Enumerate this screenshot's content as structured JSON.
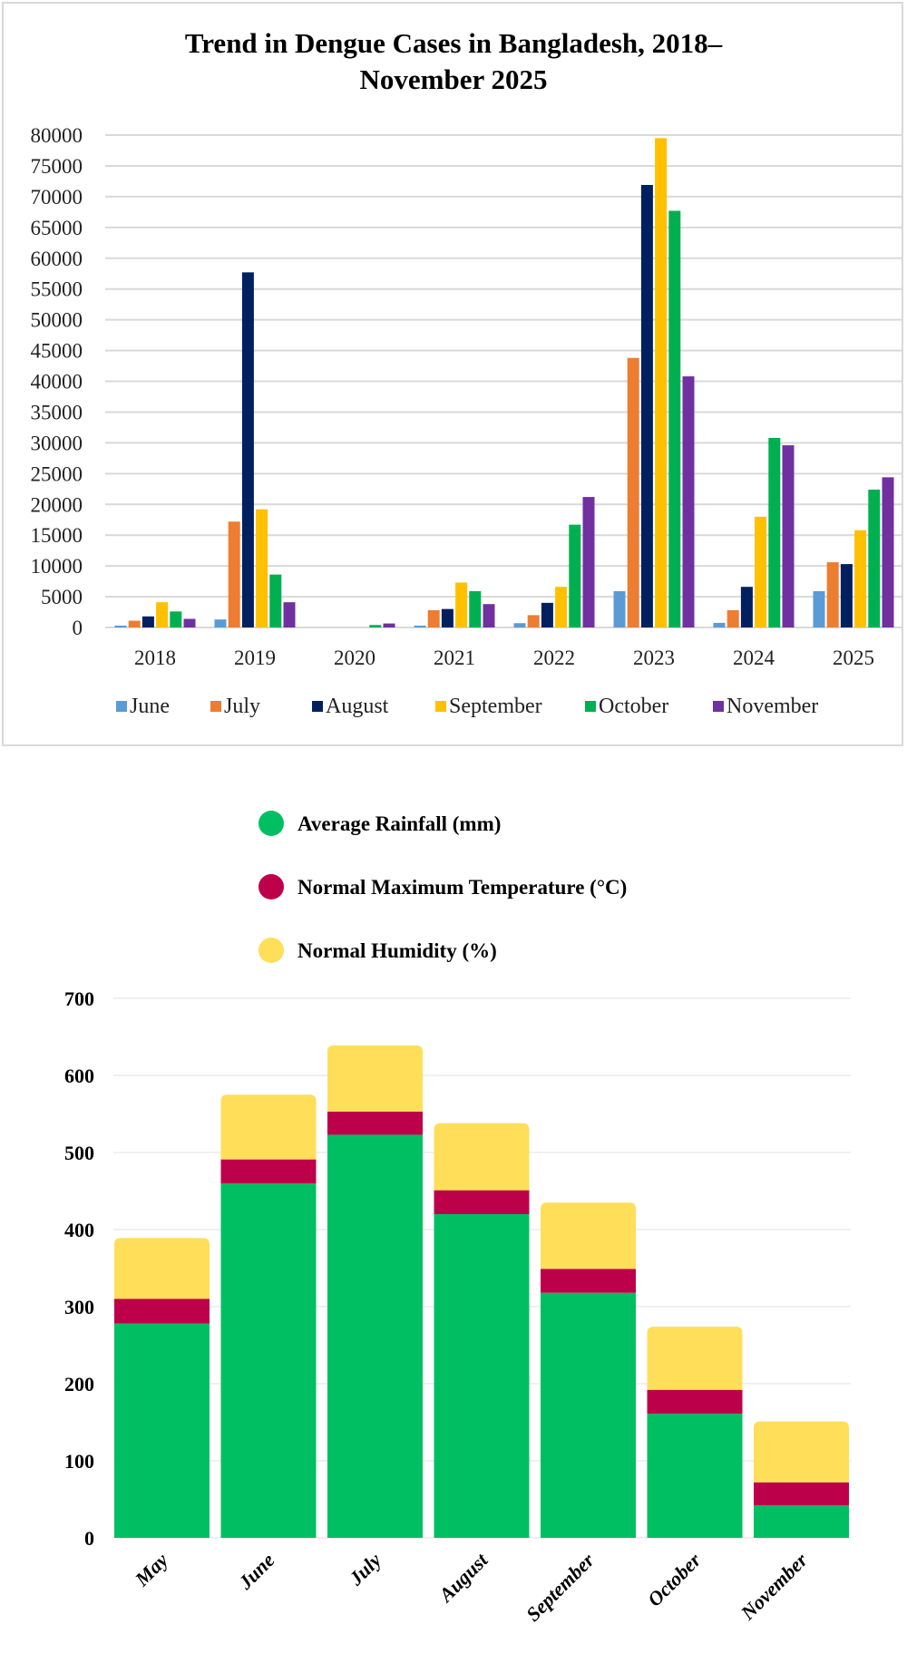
{
  "chart_data": [
    {
      "type": "bar",
      "title": "Trend in Dengue Cases in Bangladesh, 2018–November 2025",
      "title_lines": [
        "Trend in Dengue Cases in Bangladesh, 2018–",
        "November 2025"
      ],
      "xlabel": "",
      "ylabel": "",
      "ylim": [
        0,
        80000
      ],
      "yticks": [
        0,
        5000,
        10000,
        15000,
        20000,
        25000,
        30000,
        35000,
        40000,
        45000,
        50000,
        55000,
        60000,
        65000,
        70000,
        75000,
        80000
      ],
      "grid": true,
      "legend_position": "bottom",
      "categories": [
        "2018",
        "2019",
        "2020",
        "2021",
        "2022",
        "2023",
        "2024",
        "2025"
      ],
      "series": [
        {
          "name": "June",
          "color": "#5b9bd5",
          "values": [
            300,
            1300,
            0,
            300,
            700,
            5900,
            750,
            5900
          ]
        },
        {
          "name": "July",
          "color": "#ed7d31",
          "values": [
            1100,
            17200,
            0,
            2800,
            2000,
            43800,
            2800,
            10600
          ]
        },
        {
          "name": "August",
          "color": "#002060",
          "values": [
            1800,
            57700,
            0,
            3000,
            4000,
            71900,
            6600,
            10300
          ]
        },
        {
          "name": "September",
          "color": "#ffc000",
          "values": [
            4100,
            19200,
            0,
            7300,
            6600,
            79500,
            18000,
            15800
          ]
        },
        {
          "name": "October",
          "color": "#00b050",
          "values": [
            2600,
            8600,
            400,
            5900,
            16700,
            67700,
            30800,
            22400
          ]
        },
        {
          "name": "November",
          "color": "#7030a0",
          "values": [
            1400,
            4100,
            650,
            3800,
            21200,
            40800,
            29600,
            24400
          ]
        }
      ]
    },
    {
      "type": "bar",
      "stacked": true,
      "title": "",
      "xlabel": "",
      "ylabel": "",
      "ylim": [
        0,
        700
      ],
      "yticks": [
        0,
        100,
        200,
        300,
        400,
        500,
        600,
        700
      ],
      "grid": true,
      "legend_position": "top",
      "categories": [
        "May",
        "June",
        "July",
        "August",
        "September",
        "October",
        "November"
      ],
      "series": [
        {
          "name": "Average Rainfall (mm)",
          "color": "#00bf63",
          "values": [
            278,
            460,
            523,
            420,
            318,
            161,
            42
          ]
        },
        {
          "name": "Normal Maximum Temperature (°C)",
          "color": "#bd004a",
          "values": [
            32,
            31,
            30,
            31,
            31,
            31,
            30
          ]
        },
        {
          "name": "Normal Humidity (%)",
          "color": "#ffde59",
          "values": [
            79,
            84,
            86,
            87,
            86,
            82,
            79
          ]
        }
      ]
    }
  ]
}
